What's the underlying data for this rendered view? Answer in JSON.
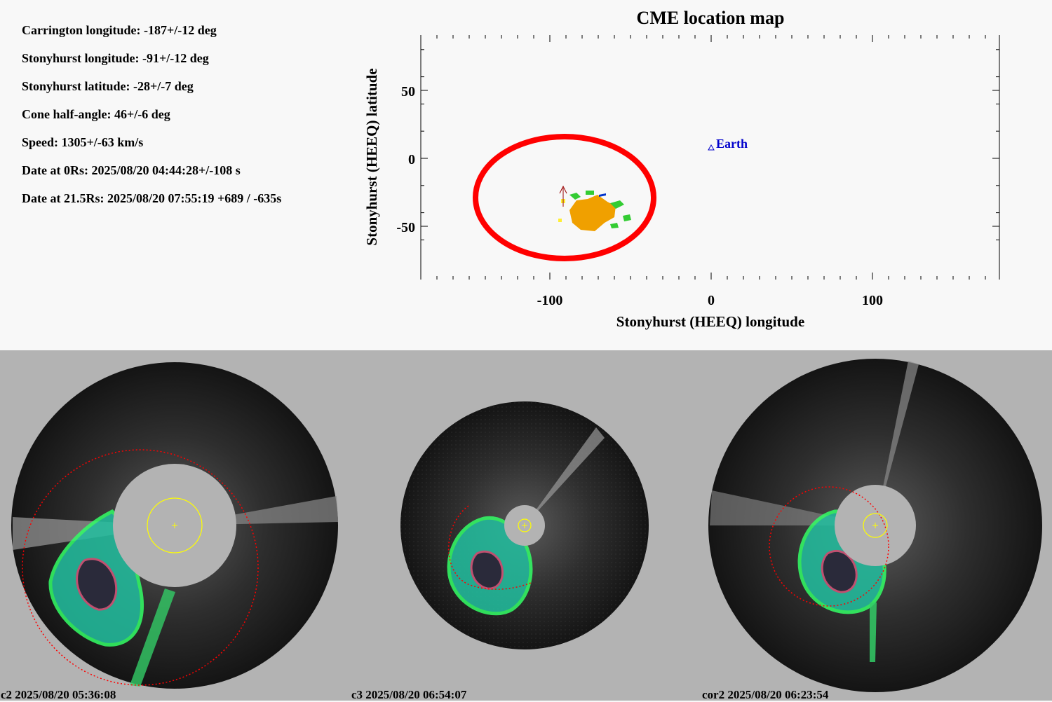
{
  "parameters": [
    "Carrington longitude: -187+/-12 deg",
    "Stonyhurst longitude: -91+/-12 deg",
    "Stonyhurst latitude: -28+/-7 deg",
    "Cone half-angle: 46+/-6 deg",
    "Speed: 1305+/-63 km/s",
    "Date at 0Rs: 2025/08/20 04:44:28+/-108 s",
    "Date at 21.5Rs: 2025/08/20 07:55:19 +689 / -635s"
  ],
  "map": {
    "title": "CME location map",
    "xlabel": "Stonyhurst (HEEQ) longitude",
    "ylabel": "Stonyhurst (HEEQ) latitude",
    "x_ticks": [
      "-100",
      "0",
      "100"
    ],
    "y_ticks": [
      "50",
      "0",
      "-50"
    ],
    "earth_label": "Earth"
  },
  "chart_data": {
    "type": "scatter",
    "title": "CME location map",
    "xlabel": "Stonyhurst (HEEQ) longitude",
    "ylabel": "Stonyhurst (HEEQ) latitude",
    "xlim": [
      -180,
      180
    ],
    "ylim": [
      -90,
      90
    ],
    "x_tick_values": [
      -100,
      0,
      100
    ],
    "y_tick_values": [
      50,
      0,
      -50
    ],
    "earth": {
      "lon": 0,
      "lat": 10
    },
    "cme_source": {
      "lon": -91,
      "lat": -28
    },
    "cone_outline_color": "#ff0000",
    "earth_color": "#0000cc"
  },
  "images": [
    {
      "caption": "c2 2025/08/20 05:36:08"
    },
    {
      "caption": "c3 2025/08/20 06:54:07"
    },
    {
      "caption": "cor2 2025/08/20 06:23:54"
    }
  ],
  "colors": {
    "top_bg": "#f8f8f8",
    "bottom_bg": "#b3b3b3",
    "sun_circle": "#ffff00",
    "fit_arc": "#ff0000"
  }
}
